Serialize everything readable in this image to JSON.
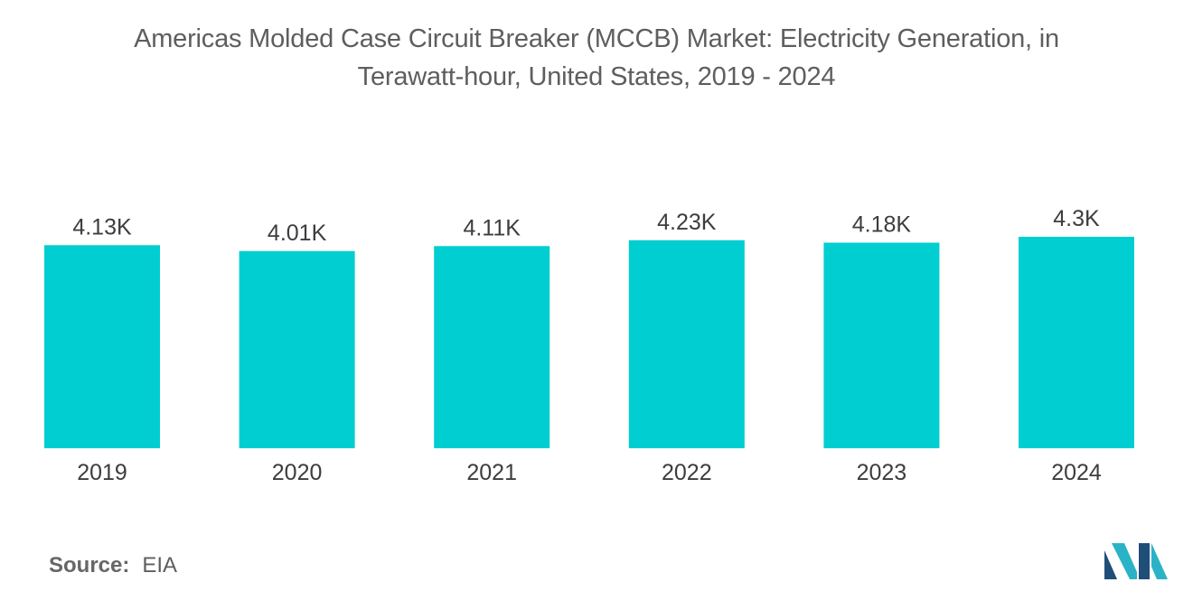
{
  "chart_data": {
    "type": "bar",
    "title_lines": [
      "Americas Molded Case Circuit Breaker (MCCB) Market: Electricity Generation, in",
      "Terawatt-hour, United States, 2019 - 2024"
    ],
    "categories": [
      "2019",
      "2020",
      "2021",
      "2022",
      "2023",
      "2024"
    ],
    "values": [
      4130,
      4010,
      4110,
      4230,
      4180,
      4300
    ],
    "data_labels": [
      "4.13K",
      "4.01K",
      "4.11K",
      "4.23K",
      "4.18K",
      "4.3K"
    ],
    "unit": "Terawatt-hour",
    "xlabel": "",
    "ylabel": "",
    "ylim": [
      0,
      4300
    ],
    "grid": false,
    "bar_color": "#00ced1"
  },
  "source": {
    "label": "Source:",
    "value": "EIA"
  },
  "logo": {
    "icon": "mordor-intelligence-logo-icon",
    "colors": [
      "#1f4e79",
      "#2ab3c7"
    ]
  }
}
